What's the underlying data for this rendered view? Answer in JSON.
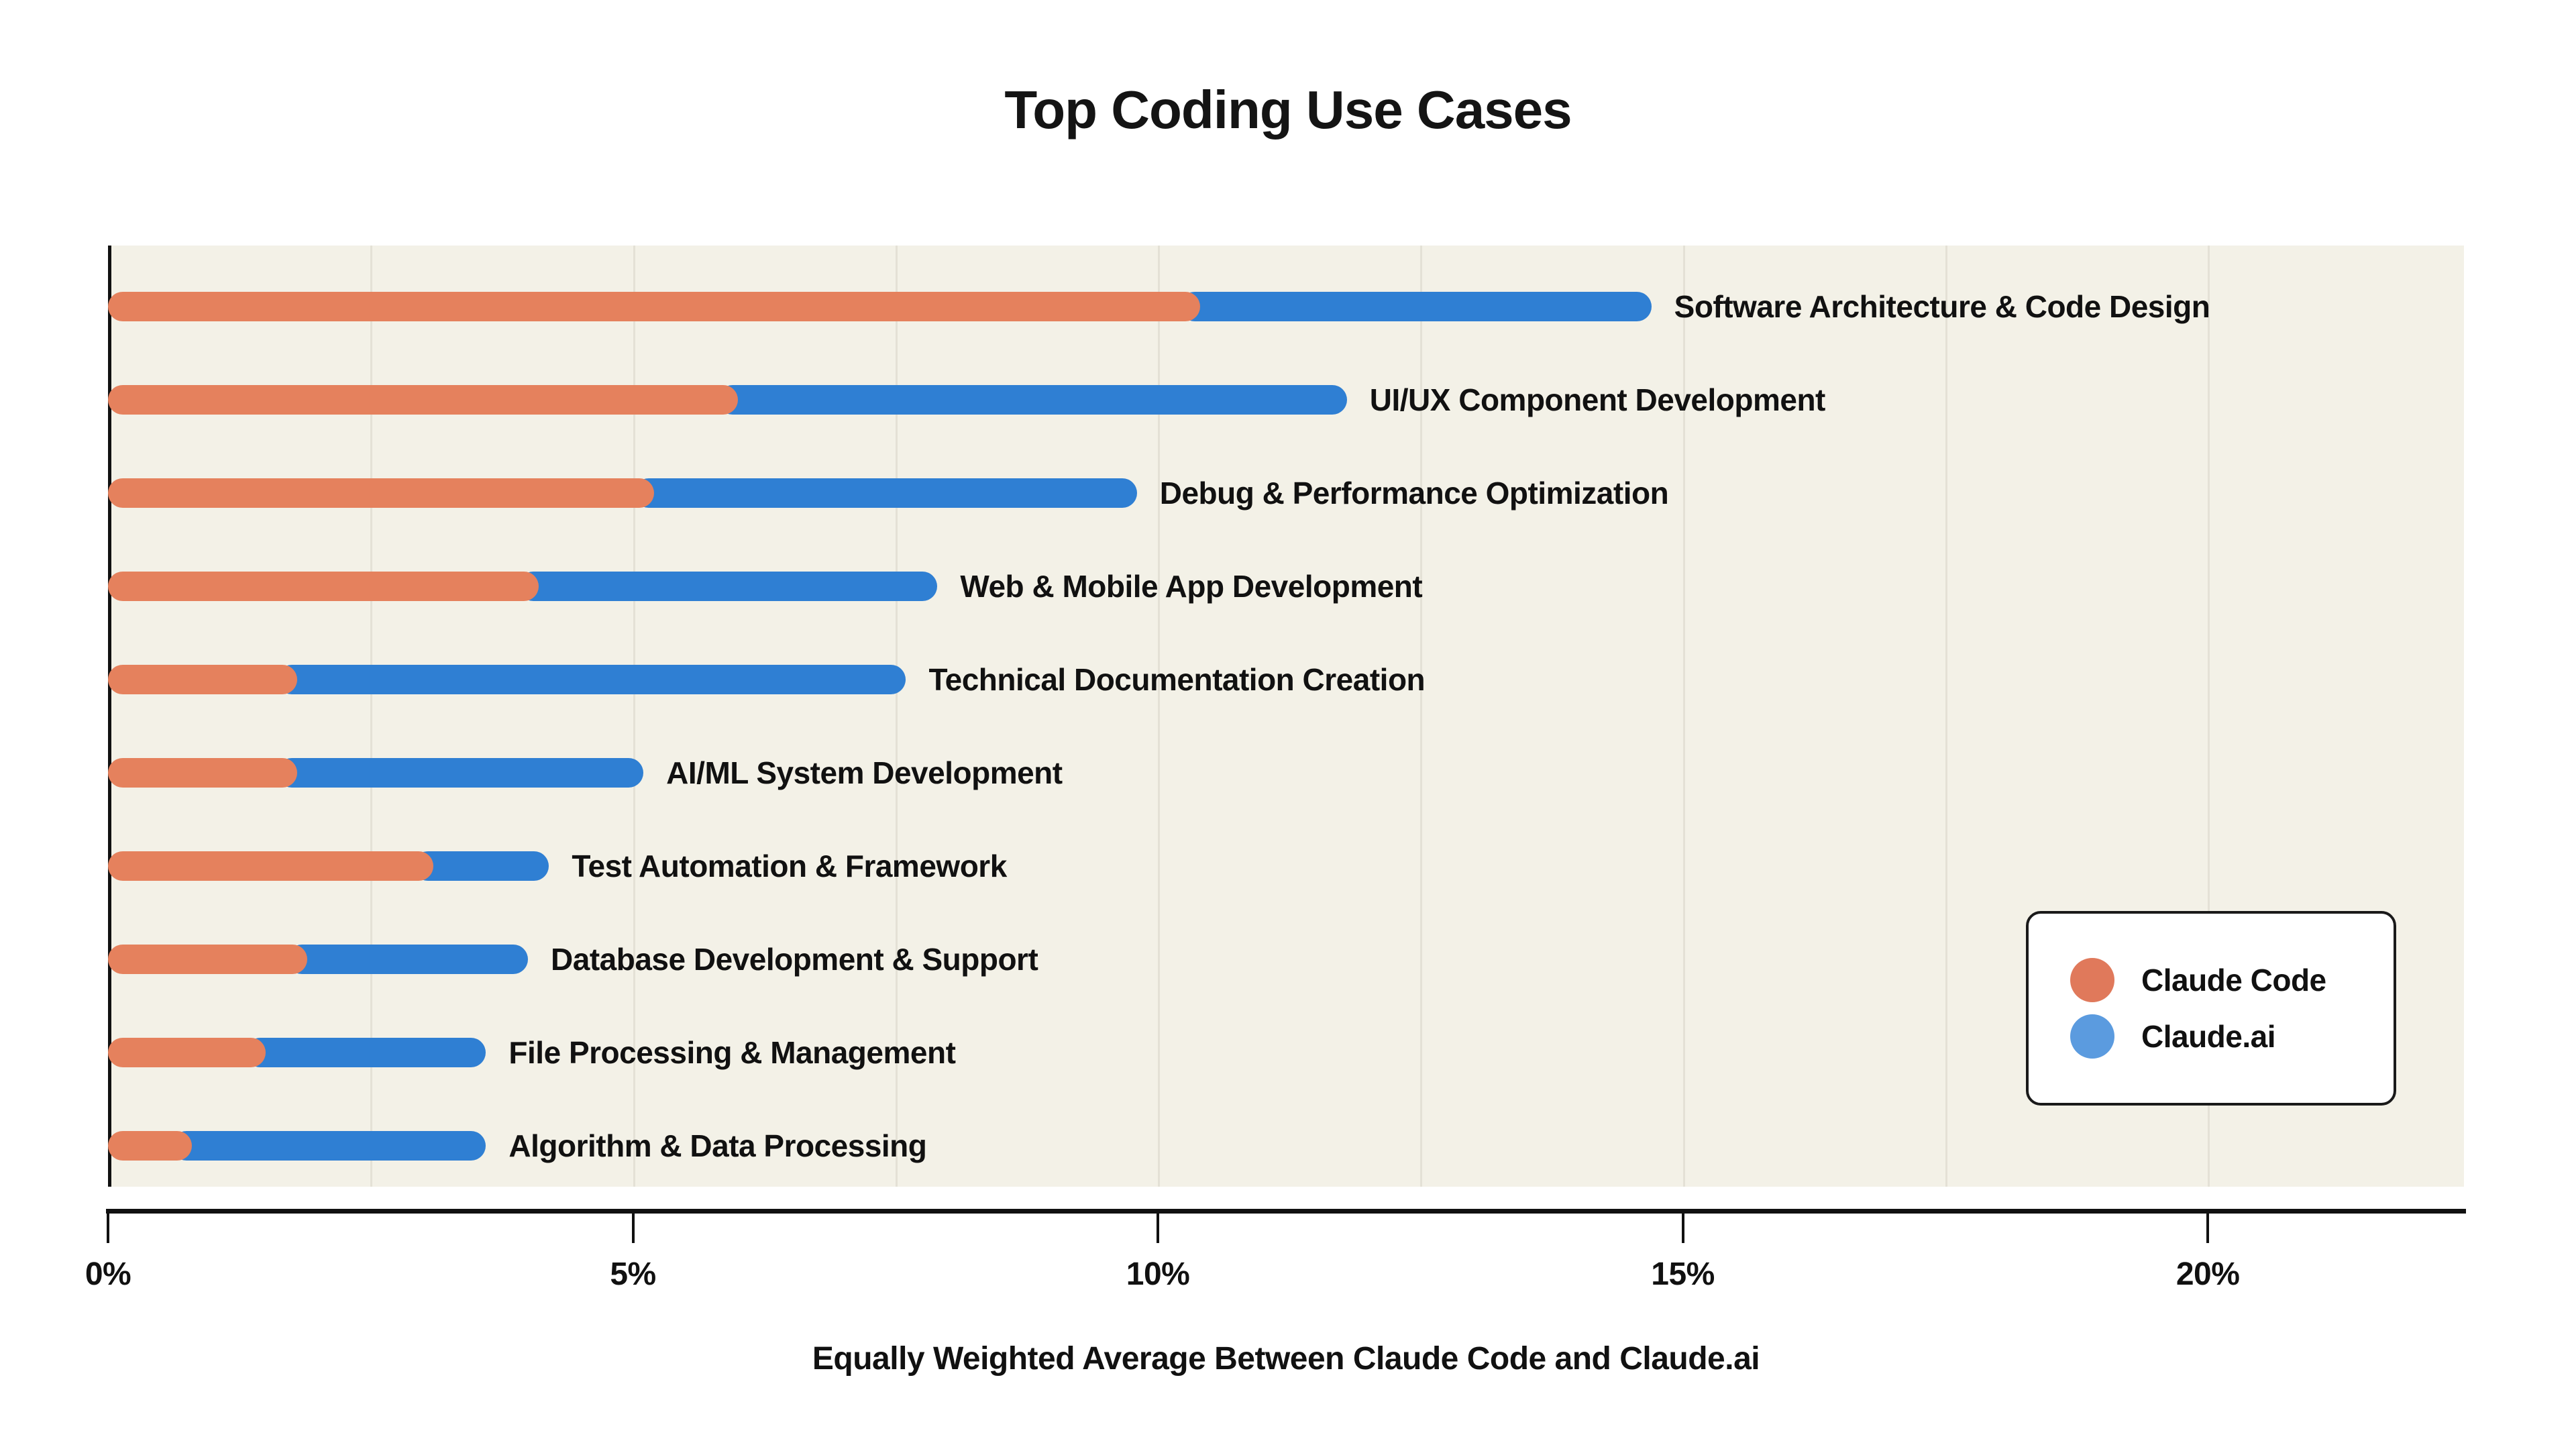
{
  "title": "Top Coding Use Cases",
  "colors": {
    "page_background": "#FFFFFF",
    "plot_background": "#F3F1E7",
    "claude_code_bar": "#E5815D",
    "claude_ai_bar": "#2F7FD3",
    "legend_code_marker": "#E0795B",
    "legend_ai_marker": "#5B9BDF",
    "axis": "#111111",
    "gridline": "#E4E1D6",
    "text": "#111111"
  },
  "legend": {
    "entries": [
      {
        "label": "Claude Code",
        "color": "#E0795B"
      },
      {
        "label": "Claude.ai",
        "color": "#5B9BDF"
      }
    ]
  },
  "chart_data": {
    "type": "bar",
    "orientation": "horizontal",
    "stacked": true,
    "title": "Top Coding Use Cases",
    "xlabel": "Equally Weighted Average Between Claude Code and Claude.ai",
    "ylabel": "",
    "xlim": [
      0,
      22.44
    ],
    "grid": "vertical",
    "grid_step_pct": 2.5,
    "legend_position": "inside-right",
    "x_ticks": [
      {
        "value": 0,
        "label": "0%"
      },
      {
        "value": 5,
        "label": "5%"
      },
      {
        "value": 10,
        "label": "10%"
      },
      {
        "value": 15,
        "label": "15%"
      },
      {
        "value": 20,
        "label": "20%"
      }
    ],
    "categories": [
      "Software Architecture & Code Design",
      "UI/UX Component Development",
      "Debug & Performance Optimization",
      "Web & Mobile App Development",
      "Technical Documentation Creation",
      "AI/ML System Development",
      "Test Automation & Framework",
      "Database Development & Support",
      "File Processing & Management",
      "Algorithm & Data Processing"
    ],
    "series": [
      {
        "name": "Claude Code",
        "color": "#E5815D",
        "values": [
          10.4,
          6.0,
          5.2,
          4.1,
          1.8,
          1.8,
          3.1,
          1.9,
          1.5,
          0.8
        ]
      },
      {
        "name": "Claude.ai",
        "color": "#2F7FD3",
        "values": [
          4.3,
          5.8,
          4.6,
          3.8,
          5.8,
          3.3,
          1.1,
          2.1,
          2.1,
          2.8
        ]
      }
    ]
  }
}
